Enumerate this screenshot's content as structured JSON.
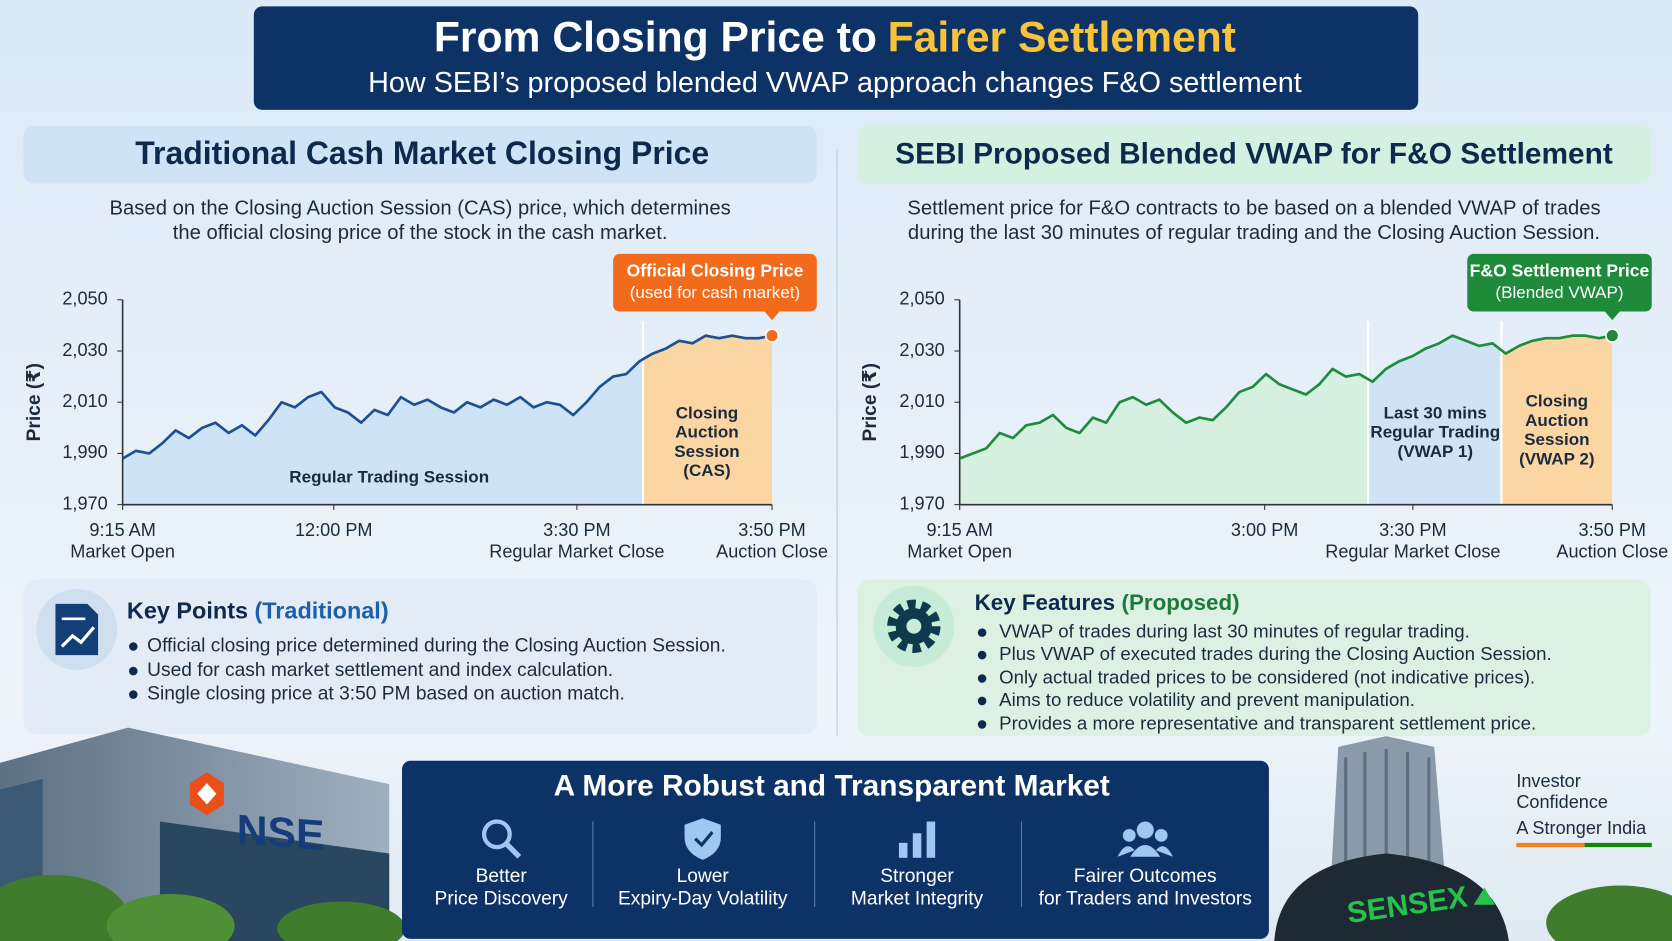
{
  "header": {
    "title": "From Closing Price to",
    "title_highlight": "Fairer Settlement",
    "subtitle": "How SEBI’s proposed blended VWAP approach changes F&O settlement"
  },
  "chart_data": [
    {
      "type": "line",
      "title": "Traditional Cash Market Closing Price",
      "description": [
        "Based on the Closing Auction Session (CAS) price, which determines",
        "the official closing price of the stock in the cash market."
      ],
      "y_label": "Price (₹)",
      "ylim": [
        1970,
        2050
      ],
      "yticks": [
        {
          "value": 1970,
          "label": "1,970"
        },
        {
          "value": 1990,
          "label": "1,990"
        },
        {
          "value": 2010,
          "label": "2,010"
        },
        {
          "value": 2030,
          "label": "2,030"
        },
        {
          "value": 2050,
          "label": "2,050"
        }
      ],
      "x_labels": [
        [
          "9:15 AM",
          "Market Open"
        ],
        [
          "12:00 PM"
        ],
        [
          "3:30 PM",
          "Regular Market Close"
        ],
        [
          "3:50 PM",
          "Auction Close"
        ]
      ],
      "color": "#1d4f91",
      "values": [
        1988,
        1991,
        1990,
        1994,
        1999,
        1996,
        2000,
        2002,
        1998,
        2001,
        1997,
        2003,
        2010,
        2008,
        2012,
        2014,
        2008,
        2006,
        2002,
        2007,
        2005,
        2012,
        2009,
        2011,
        2008,
        2006,
        2010,
        2008,
        2011,
        2009,
        2012,
        2008,
        2010,
        2009,
        2005,
        2010,
        2016,
        2020,
        2021,
        2026,
        2029,
        2031,
        2034,
        2033,
        2036,
        2035,
        2036,
        2035,
        2035,
        2036
      ],
      "regions": [
        {
          "label": [
            "Regular Trading Session"
          ],
          "color": "#cfe3f7"
        },
        {
          "label": [
            "Closing",
            "Auction",
            "Session",
            "(CAS)"
          ],
          "color": "#fcd6a2"
        }
      ],
      "callout": [
        "Official Closing Price",
        "(used for cash market)"
      ],
      "callout_color": "#f26b1d"
    },
    {
      "type": "line",
      "title": "SEBI Proposed Blended VWAP for F&O Settlement",
      "description": [
        "Settlement price for F&O contracts to be based on a blended VWAP of trades",
        "during the last 30 minutes of regular trading and the Closing Auction Session."
      ],
      "y_label": "Price (₹)",
      "ylim": [
        1970,
        2050
      ],
      "yticks": [
        {
          "value": 1970,
          "label": "1,970"
        },
        {
          "value": 1990,
          "label": "1,990"
        },
        {
          "value": 2010,
          "label": "2,010"
        },
        {
          "value": 2030,
          "label": "2,030"
        },
        {
          "value": 2050,
          "label": "2,050"
        }
      ],
      "x_labels": [
        [
          "9:15 AM",
          "Market Open"
        ],
        [
          "3:00 PM"
        ],
        [
          "3:30 PM",
          "Regular Market Close"
        ],
        [
          "3:50 PM",
          "Auction Close"
        ]
      ],
      "color": "#1e8c3a",
      "values": [
        1988,
        1990,
        1992,
        1998,
        1996,
        2001,
        2002,
        2005,
        2000,
        1998,
        2004,
        2002,
        2010,
        2012,
        2009,
        2011,
        2006,
        2002,
        2004,
        2003,
        2008,
        2014,
        2016,
        2021,
        2017,
        2015,
        2013,
        2017,
        2023,
        2020,
        2021,
        2018,
        2023,
        2026,
        2028,
        2031,
        2033,
        2036,
        2034,
        2032,
        2033,
        2029,
        2032,
        2034,
        2035,
        2035,
        2036,
        2036,
        2035,
        2036
      ],
      "regions": [
        {
          "color": "#d5f0df"
        },
        {
          "label": [
            "Last 30 mins",
            "Regular Trading",
            "(VWAP 1)"
          ],
          "color": "#cfe3f5"
        },
        {
          "label": [
            "Closing",
            "Auction",
            "Session",
            "(VWAP 2)"
          ],
          "color": "#fcd6a2"
        }
      ],
      "callout": [
        "F&O Settlement Price",
        "(Blended VWAP)"
      ],
      "callout_color": "#1e8a3a"
    }
  ],
  "key_points": [
    {
      "title": "Key Points",
      "title_note": "(Traditional)",
      "items": [
        "Official closing price determined during the Closing Auction Session.",
        "Used for cash market settlement and index calculation.",
        "Single closing price at 3:50 PM based on auction match."
      ]
    },
    {
      "title": "Key Features",
      "title_note": "(Proposed)",
      "items": [
        "VWAP of trades during last 30 minutes of regular trading.",
        "Plus VWAP of executed trades during the Closing Auction Session.",
        "Only actual traded prices to be considered (not indicative prices).",
        "Aims to reduce volatility and prevent manipulation.",
        "Provides a more representative and transparent settlement price."
      ]
    }
  ],
  "footer": {
    "title": "A More Robust and Transparent Market",
    "items": [
      [
        "Better",
        "Price Discovery"
      ],
      [
        "Lower",
        "Expiry-Day Volatility"
      ],
      [
        "Stronger",
        "Market Integrity"
      ],
      [
        "Fairer Outcomes",
        "for Traders and Investors"
      ]
    ]
  },
  "side": {
    "lines": [
      "Investor",
      "Confidence",
      "A Stronger India"
    ],
    "nse": "NSE",
    "sensex": "SENSEX"
  }
}
